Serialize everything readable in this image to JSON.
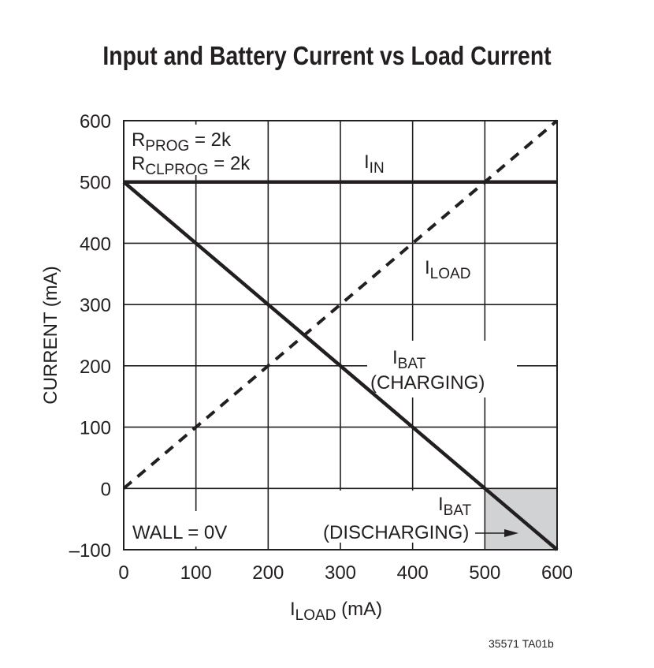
{
  "chart_data": {
    "type": "line",
    "title": "Input and Battery Current vs Load Current",
    "xlabel": {
      "main": "I",
      "sub": "LOAD",
      "rest": " (mA)"
    },
    "ylabel": "CURRENT (mA)",
    "xlim": [
      0,
      600
    ],
    "ylim": [
      -100,
      600
    ],
    "xticks": [
      "0",
      "100",
      "200",
      "300",
      "400",
      "500",
      "600"
    ],
    "yticks": [
      "600",
      "500",
      "400",
      "300",
      "200",
      "100",
      "0",
      "–100"
    ],
    "grid": true,
    "series": [
      {
        "name": "IIN",
        "style": "solid",
        "x": [
          0,
          600
        ],
        "y": [
          500,
          500
        ]
      },
      {
        "name": "ILOAD",
        "style": "dashed",
        "x": [
          0,
          600
        ],
        "y": [
          0,
          600
        ]
      },
      {
        "name": "IBAT",
        "style": "solid",
        "x": [
          0,
          600
        ],
        "y": [
          500,
          -100
        ]
      }
    ],
    "shaded_region": {
      "x": [
        500,
        600
      ],
      "y": [
        -100,
        0
      ],
      "color": "#d1d2d4"
    },
    "annotations": {
      "rprog": {
        "main": "R",
        "sub": "PROG",
        "rest": " = 2k"
      },
      "rclprog": {
        "main": "R",
        "sub": "CLPROG",
        "rest": " = 2k"
      },
      "iin": {
        "main": "I",
        "sub": "IN"
      },
      "iload": {
        "main": "I",
        "sub": "LOAD"
      },
      "ibat_charging": {
        "main": "I",
        "sub": "BAT",
        "line2": "(CHARGING)"
      },
      "ibat_discharging": {
        "main": "I",
        "sub": "BAT",
        "line2": "(DISCHARGING)"
      },
      "wall": "WALL = 0V"
    },
    "colors": {
      "line": "#231f20",
      "grid": "#231f20",
      "shade": "#d1d2d4"
    }
  },
  "figure_id": "35571 TA01b"
}
